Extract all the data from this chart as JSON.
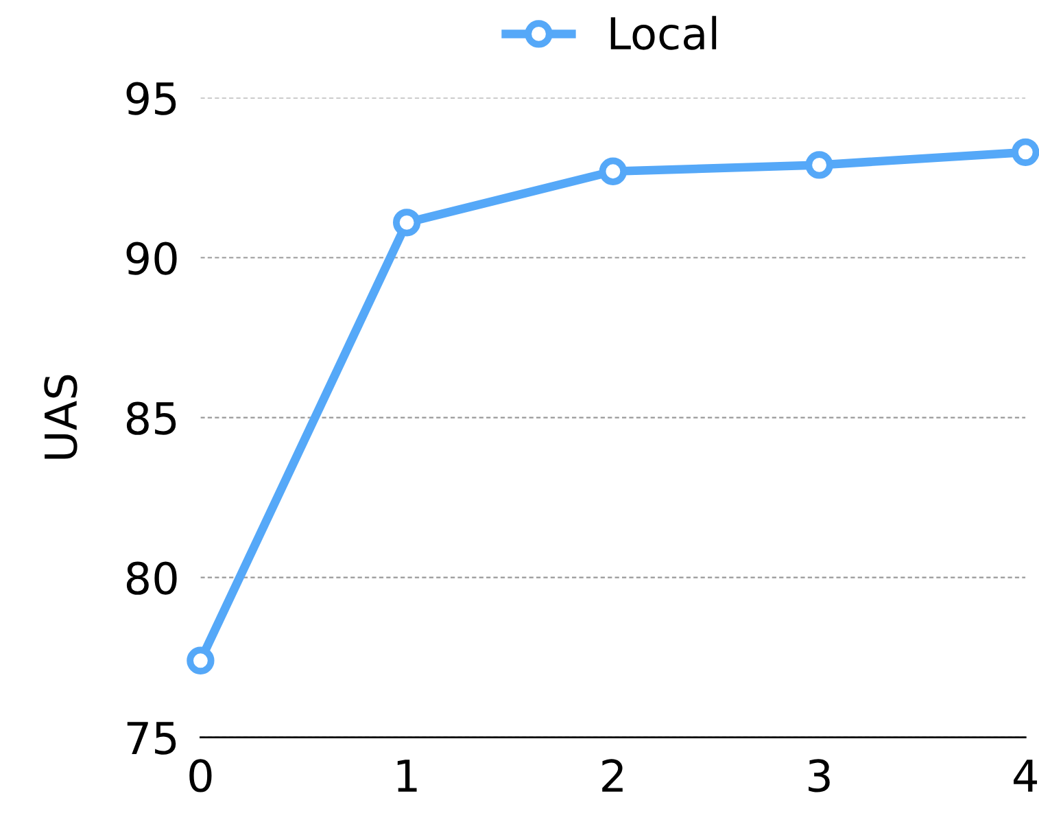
{
  "chart_data": {
    "type": "line",
    "ylabel": "UAS",
    "x": [
      0,
      1,
      2,
      3,
      4
    ],
    "series": [
      {
        "name": "Local",
        "color": "#55a8f8",
        "values": [
          77.4,
          91.1,
          92.7,
          92.9,
          93.3
        ]
      }
    ],
    "xlim": [
      0,
      4
    ],
    "xticks": [
      0,
      1,
      2,
      3,
      4
    ],
    "ylim": [
      75,
      95
    ],
    "yticks": [
      75,
      80,
      85,
      90,
      95
    ],
    "grid": "y",
    "legend": "top",
    "marker": "circle",
    "line_style": "solid"
  }
}
